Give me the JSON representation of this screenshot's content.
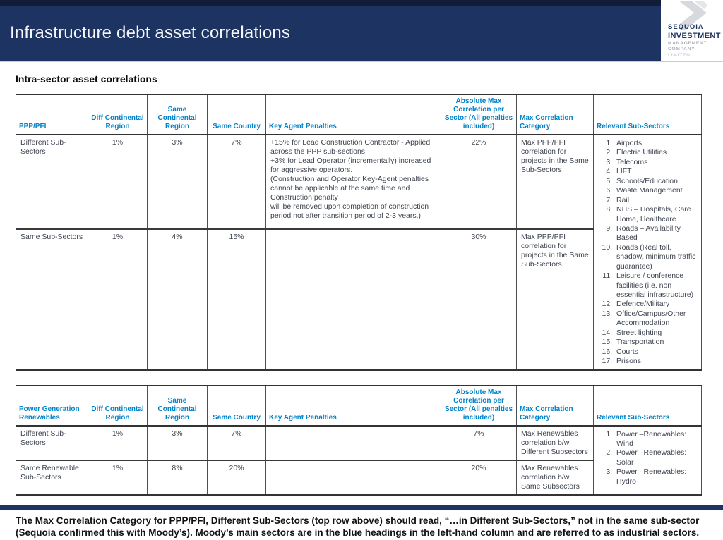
{
  "header": {
    "title": "Infrastructure debt asset correlations",
    "logo": {
      "name": "SEQUOIΛ",
      "line2": "INVESTMENT",
      "line3": "MANAGEMENT",
      "line4": "COMPANY",
      "line5": "LIMITED"
    }
  },
  "subtitle": "Intra-sector asset correlations",
  "table1": {
    "headers": [
      "PPP/PFI",
      "Diff Continental Region",
      "Same Continental Region",
      "Same Country",
      "Key Agent Penalties",
      "Absolute Max Correlation per Sector (All penalties included)",
      "Max Correlation Category",
      "Relevant Sub-Sectors"
    ],
    "rows": [
      {
        "label": "Different Sub-Sectors",
        "diff_region": "1%",
        "same_region": "3%",
        "same_country": "7%",
        "penalties": "+15% for Lead Construction Contractor - Applied across the PPP sub-sections\n+3% for Lead Operator (incrementally) increased for aggressive operators.\n(Construction and Operator Key-Agent penalties cannot be applicable at the same time and Construction penalty\nwill be removed upon completion of construction period not after transition period of 2-3 years.)",
        "abs_max": "22%",
        "category": "Max PPP/PFI correlation for projects in the Same Sub-Sectors"
      },
      {
        "label": "Same Sub-Sectors",
        "diff_region": "1%",
        "same_region": "4%",
        "same_country": "15%",
        "penalties": "",
        "abs_max": "30%",
        "category": "Max PPP/PFI correlation for projects in the Same Sub-Sectors"
      }
    ],
    "sub_sectors": [
      "Airports",
      "Electric Utilities",
      "Telecoms",
      "LIFT",
      "Schools/Education",
      "Waste Management",
      "Rail",
      "NHS – Hospitals, Care Home, Healthcare",
      "Roads – Availability Based",
      "Roads (Real toll, shadow, minimum traffic guarantee)",
      "Leisure / conference facilities (i.e. non essential infrastructure)",
      "Defence/Military",
      "Office/Campus/Other Accommodation",
      "Street lighting",
      "Transportation",
      "Courts",
      "Prisons"
    ]
  },
  "table2": {
    "headers": [
      "Power Generation Renewables",
      "Diff Continental Region",
      "Same Continental Region",
      "Same Country",
      "Key Agent Penalties",
      "Absolute Max Correlation per Sector (All penalties included)",
      "Max Correlation Category",
      "Relevant Sub-Sectors"
    ],
    "rows": [
      {
        "label": "Different Sub-Sectors",
        "diff_region": "1%",
        "same_region": "3%",
        "same_country": "7%",
        "penalties": "",
        "abs_max": "7%",
        "category": "Max Renewables correlation b/w Different Subsectors"
      },
      {
        "label": "Same Renewable Sub-Sectors",
        "diff_region": "1%",
        "same_region": "8%",
        "same_country": "20%",
        "penalties": "",
        "abs_max": "20%",
        "category": "Max Renewables correlation b/w Same Subsectors"
      }
    ],
    "sub_sectors": [
      "Power –Renewables: Wind",
      "Power –Renewables: Solar",
      "Power –Renewables: Hydro"
    ]
  },
  "footer": {
    "note": "The Max Correlation Category for PPP/PFI, Different Sub-Sectors (top row above) should read, “…in Different Sub-Sectors,” not in the same sub-sector (Sequoia confirmed this with Moody’s). Moody’s main sectors are in the blue headings in the left-hand column and are referred to as industrial sectors. The sub-sectors within these main sectors are in the right-hand column."
  },
  "colors": {
    "banner_navy": "#1d3462",
    "top_strip_navy": "#101c38",
    "header_blue": "#0082c9",
    "body_text": "#3e4450"
  }
}
